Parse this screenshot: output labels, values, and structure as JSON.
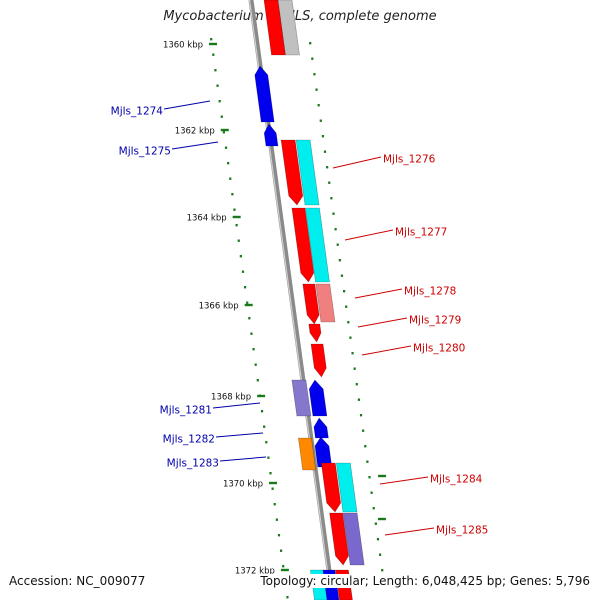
{
  "title": "Mycobacterium sp. JLS, complete genome",
  "accession": "Accession: NC_009077",
  "topology_info": "Topology: circular; Length: 6,048,425 bp; Genes: 5,796",
  "colors": {
    "backbone": "#8a8a8a",
    "tick": "#1a7a1a",
    "forward_label": "#cc0000",
    "reverse_label": "#0000aa"
  },
  "ticks": [
    "1360 kbp",
    "1362 kbp",
    "1364 kbp",
    "1366 kbp",
    "1368 kbp",
    "1370 kbp",
    "1372 kbp"
  ],
  "genes_left": [
    "Mjls_1274",
    "Mjls_1275",
    "Mjls_1281",
    "Mjls_1282",
    "Mjls_1283"
  ],
  "genes_right": [
    "Mjls_1276",
    "Mjls_1277",
    "Mjls_1278",
    "Mjls_1279",
    "Mjls_1280",
    "Mjls_1284",
    "Mjls_1285"
  ]
}
